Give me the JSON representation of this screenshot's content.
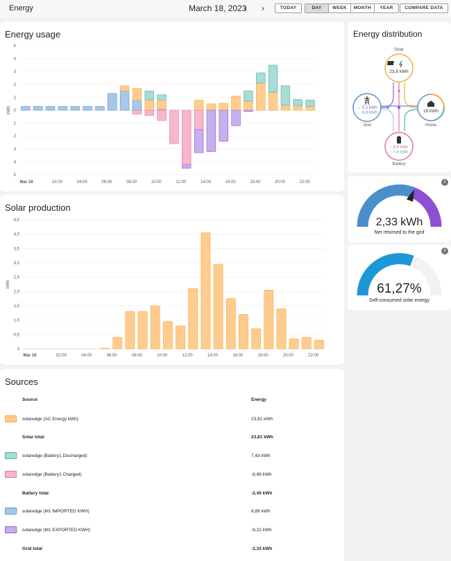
{
  "header": {
    "title": "Energy",
    "date": "March 18, 2023",
    "prev_glyph": "‹",
    "next_glyph": "›",
    "today_label": "TODAY",
    "period_tabs": [
      "DAY",
      "WEEK",
      "MONTH",
      "YEAR"
    ],
    "active_period": "DAY",
    "compare_label": "COMPARE DATA"
  },
  "usage_card": {
    "title": "Energy usage"
  },
  "solar_card": {
    "title": "Solar production"
  },
  "colors": {
    "solar": "#ffcc8f",
    "solar_stroke": "#f5a93f",
    "grid_import": "#a7c7e7",
    "grid_import_stroke": "#5c93c8",
    "grid_export": "#c5b0ec",
    "grid_export_stroke": "#8e5bd6",
    "battery_discharge": "#a8dcd4",
    "battery_discharge_stroke": "#4db3a6",
    "battery_charge": "#f7b6cc",
    "battery_charge_stroke": "#e3719b"
  },
  "chart_data": [
    {
      "type": "bar",
      "title": "Energy usage",
      "ylabel": "kWh",
      "ylim": [
        -5,
        5
      ],
      "y_ticks": [
        "5",
        "4",
        "3",
        "2",
        "1",
        "0",
        "1",
        "2",
        "3",
        "4",
        "5"
      ],
      "x_ticks": [
        "Mar 18",
        "02:00",
        "04:00",
        "06:00",
        "08:00",
        "10:00",
        "12:00",
        "14:00",
        "16:00",
        "18:00",
        "20:00",
        "22:00"
      ],
      "hours": [
        0,
        1,
        2,
        3,
        4,
        5,
        6,
        7,
        8,
        9,
        10,
        11,
        12,
        13,
        14,
        15,
        16,
        17,
        18,
        19,
        20,
        21,
        22,
        23
      ],
      "series": [
        {
          "name": "solaredge (M1 IMPORTED KWH)",
          "key": "grid_import",
          "values": [
            0.3,
            0.3,
            0.3,
            0.3,
            0.3,
            0.3,
            0.3,
            1.3,
            1.5,
            0.8,
            0.0,
            0.1,
            0.0,
            0.0,
            0.0,
            0.0,
            0.0,
            0.0,
            0.0,
            0.0,
            0.0,
            0.0,
            0.0,
            0.0
          ]
        },
        {
          "name": "solaredge (AC Energy kWh)",
          "key": "solar",
          "values": [
            0,
            0,
            0,
            0,
            0,
            0,
            0,
            0,
            0.4,
            0.9,
            0.8,
            0.7,
            0.0,
            0.0,
            0.8,
            0.5,
            0.55,
            1.1,
            0.7,
            2.1,
            1.4,
            0.4,
            0.35,
            0.3
          ]
        },
        {
          "name": "solaredge (Battery1 Discharged)",
          "key": "battery_discharge",
          "values": [
            0,
            0,
            0,
            0,
            0,
            0,
            0,
            0,
            0,
            0,
            0.7,
            0.4,
            0,
            0,
            0,
            0,
            0,
            0,
            0.8,
            0.8,
            2.1,
            1.5,
            0.5,
            0.5
          ]
        },
        {
          "name": "solaredge (Battery1 Charged)",
          "key": "battery_charge",
          "values": [
            0,
            0,
            0,
            0,
            0,
            0,
            0,
            0,
            0,
            -0.3,
            -0.4,
            -0.8,
            -2.6,
            -4.2,
            -1.5,
            0,
            0,
            0,
            0,
            0,
            0,
            0,
            0,
            0
          ]
        },
        {
          "name": "solaredge (M1 EXPORTED KWH)",
          "key": "grid_export",
          "values": [
            0,
            0,
            0,
            0,
            0,
            0,
            0,
            0,
            0,
            0,
            0,
            0,
            0,
            -0.3,
            -1.8,
            -3.2,
            -2.4,
            -1.2,
            -0.1,
            0,
            0,
            0,
            0,
            0
          ]
        }
      ]
    },
    {
      "type": "bar",
      "title": "Solar production",
      "ylabel": "kWh",
      "ylim": [
        0,
        4.5
      ],
      "y_ticks": [
        "4,5",
        "4,0",
        "3,5",
        "3,0",
        "2,5",
        "2,0",
        "1,5",
        "1,0",
        "0,5",
        "0"
      ],
      "x_ticks": [
        "Mar 18",
        "02:00",
        "04:00",
        "06:00",
        "08:00",
        "10:00",
        "12:00",
        "14:00",
        "16:00",
        "18:00",
        "20:00",
        "22:00"
      ],
      "series": [
        {
          "name": "solaredge (AC Energy kWh)",
          "values": [
            0,
            0,
            0,
            0,
            0,
            0,
            0.02,
            0.4,
            1.3,
            1.3,
            1.5,
            0.95,
            0.8,
            2.1,
            4.05,
            2.95,
            1.75,
            1.2,
            0.7,
            2.05,
            1.4,
            0.35,
            0.4,
            0.3
          ]
        }
      ]
    }
  ],
  "distribution": {
    "title": "Energy distribution",
    "solar_label": "Solar",
    "solar_value": "23,8 kWh",
    "grid_label": "Grid",
    "grid_in": "→ 9,2 kWh",
    "grid_out": "← 6,9 kWh",
    "home_label": "Home",
    "home_value": "19 kWh",
    "battery_label": "Battery",
    "battery_in": "↓ 9,9 kWh",
    "battery_out": "↑ 7,4 kWh"
  },
  "gauge_grid": {
    "value": "2,33 kWh",
    "label": "Net returned to the grid",
    "fraction": 0.62
  },
  "gauge_self": {
    "value": "61,27%",
    "label": "Self-consumed solar energy",
    "fraction": 0.6127
  },
  "sources": {
    "title": "Sources",
    "col_source": "Source",
    "col_energy": "Energy",
    "rows": [
      {
        "name": "solaredge (AC Energy kWh)",
        "value": "23,81 kWh",
        "color": "#ffcc8f",
        "stroke": "#f5a93f"
      },
      {
        "name": "Solar total",
        "value": "23,81 kWh",
        "total": true
      },
      {
        "name": "solaredge (Battery1 Discharged)",
        "value": "7,43 kWh",
        "color": "#a8dcd4",
        "stroke": "#4db3a6"
      },
      {
        "name": "solaredge (Battery1 Charged)",
        "value": "-9,88 kWh",
        "color": "#f7b6cc",
        "stroke": "#e3719b"
      },
      {
        "name": "Battery total",
        "value": "-2,45 kWh",
        "total": true
      },
      {
        "name": "solaredge (M1 IMPORTED KWH)",
        "value": "6,89 kWh",
        "color": "#a7c7e7",
        "stroke": "#5c93c8"
      },
      {
        "name": "solaredge (M1 EXPORTED KWH)",
        "value": "-9,22 kWh",
        "color": "#c5b0ec",
        "stroke": "#8e5bd6"
      },
      {
        "name": "Grid total",
        "value": "-2,33 kWh",
        "total": true
      }
    ]
  }
}
